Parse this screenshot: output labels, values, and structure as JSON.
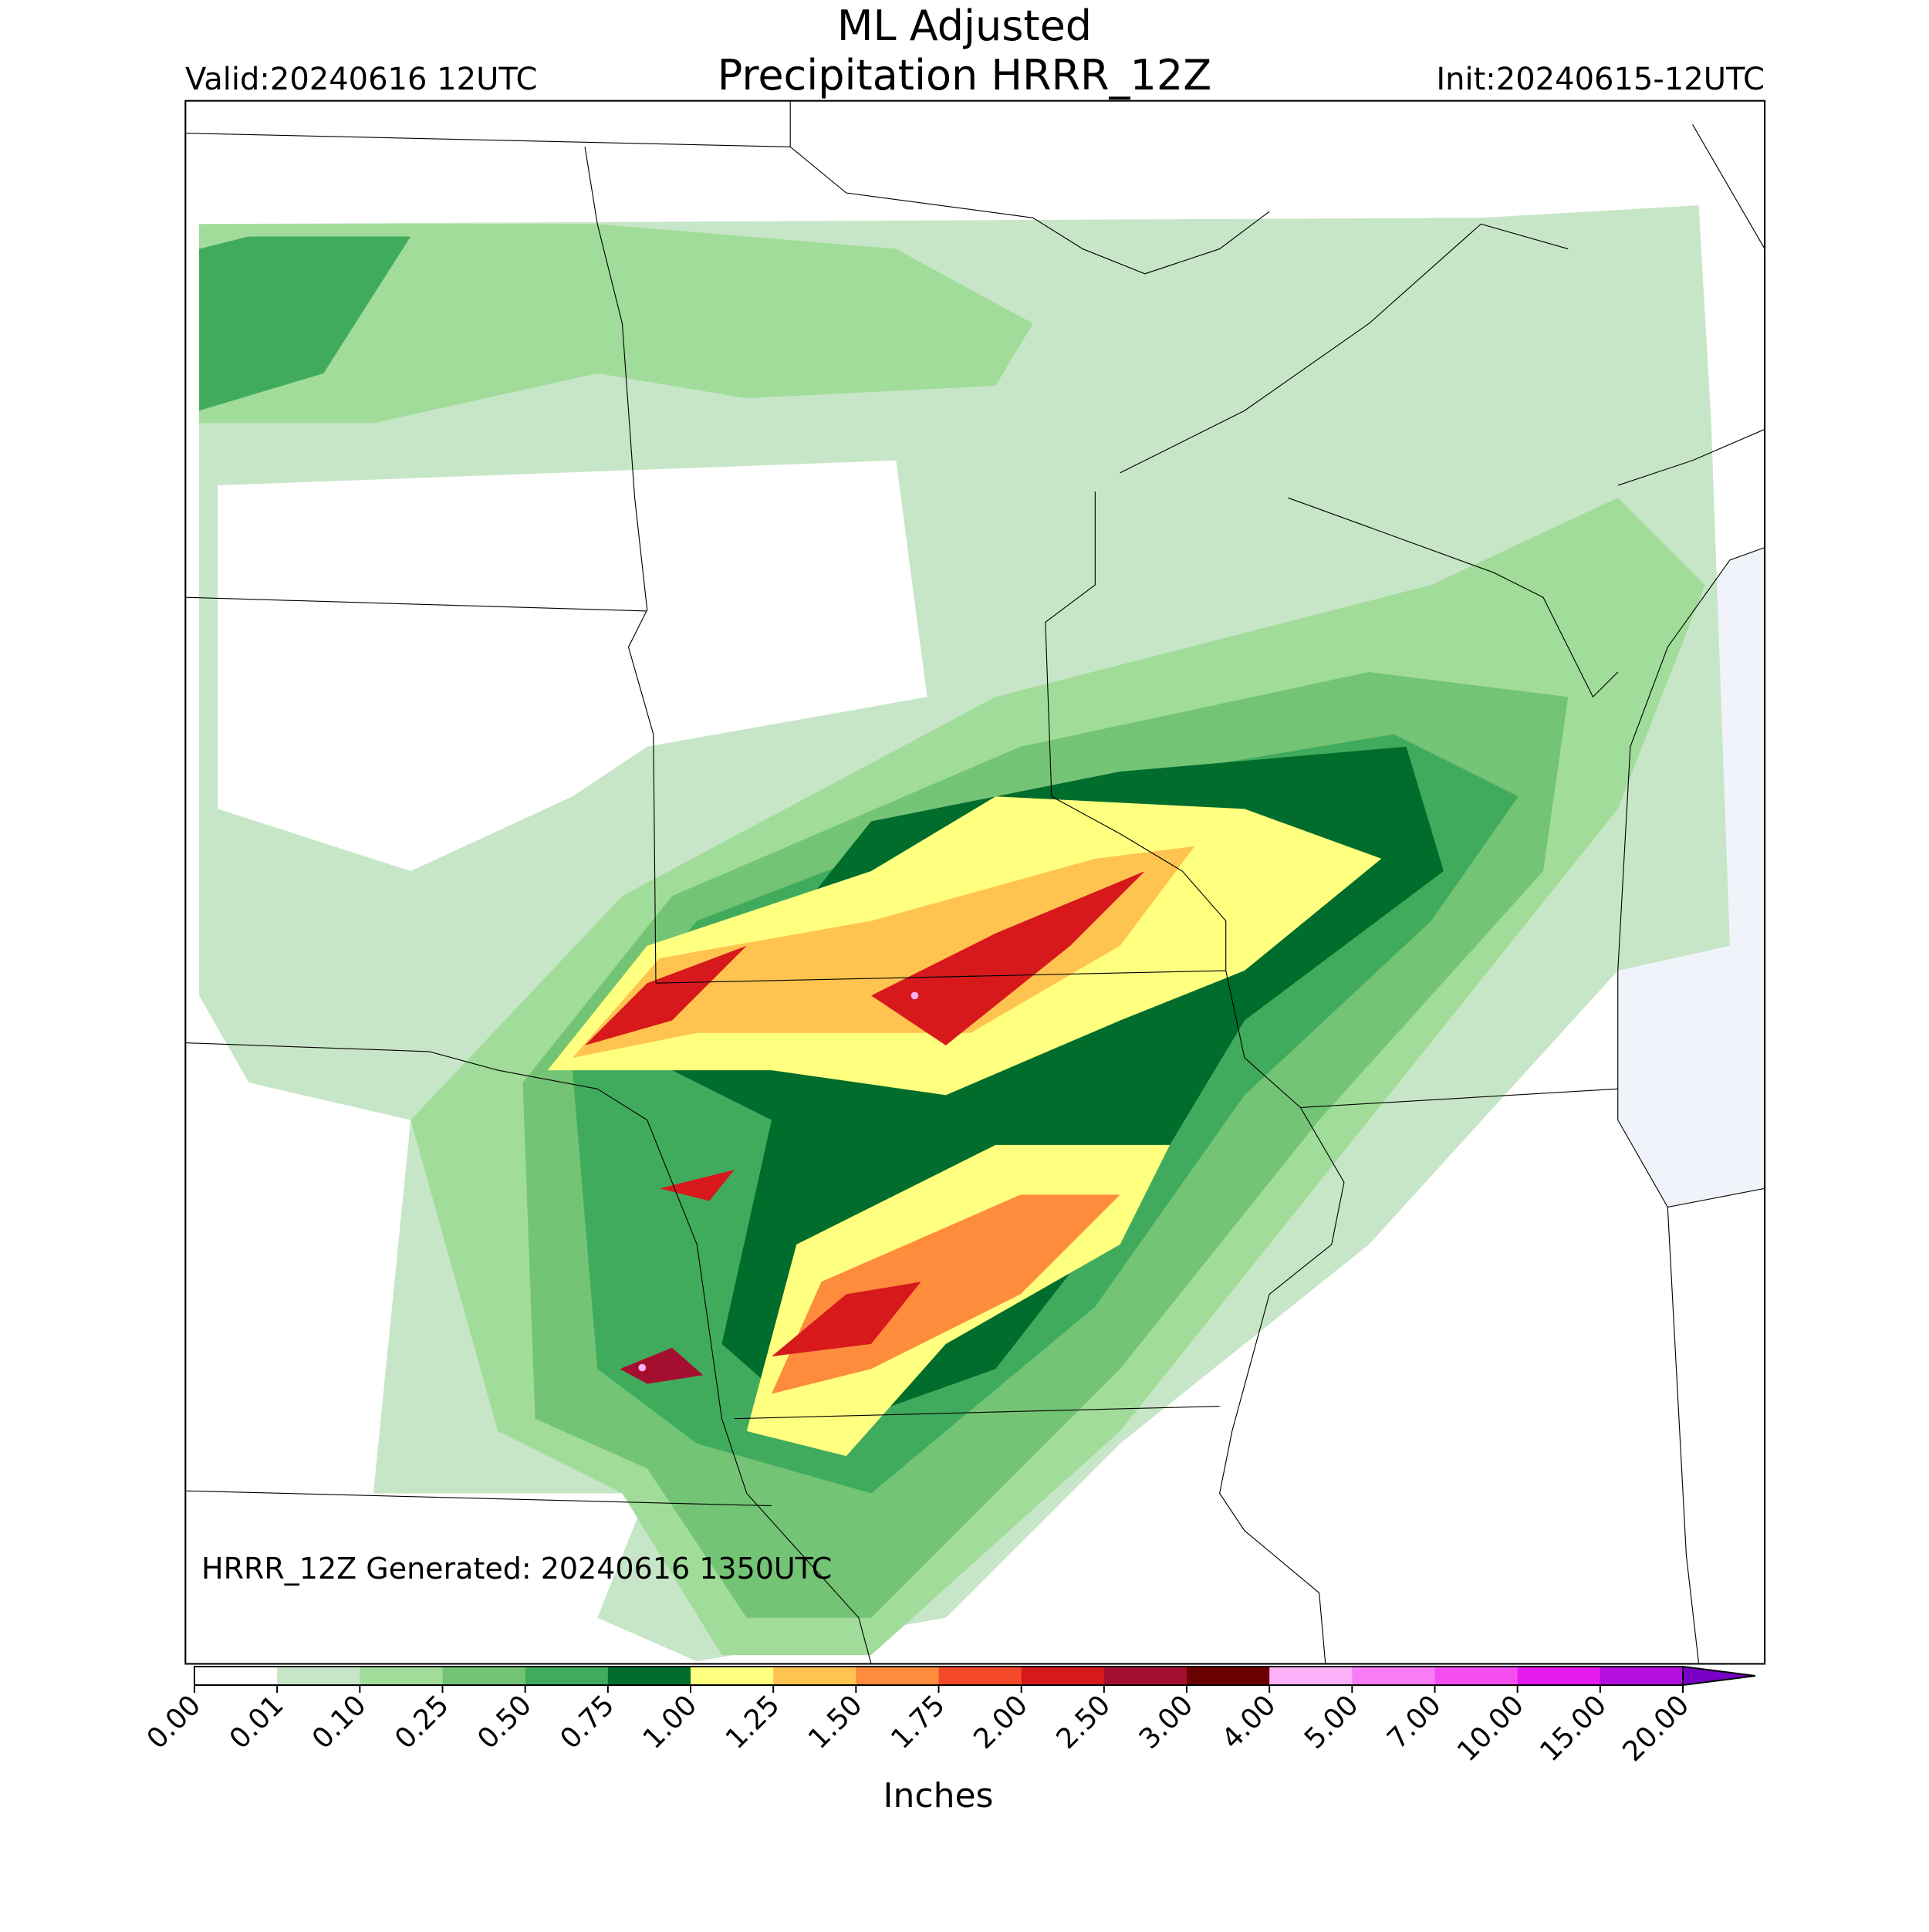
{
  "map": {
    "title_line1": "ML Adjusted",
    "title_line2": "Precipitation HRRR_12Z",
    "valid": "Valid:20240616 12UTC",
    "init": "Init:20240615-12UTC",
    "note": "HRRR_12Z Generated: 20240616 1350UTC",
    "colorbar": {
      "label": "Inches",
      "ticks": [
        {
          "value": 0,
          "label": "0.00"
        },
        {
          "value": 0.01,
          "label": "0.01"
        },
        {
          "value": 0.1,
          "label": "0.10"
        },
        {
          "value": 0.25,
          "label": "0.25"
        },
        {
          "value": 0.5,
          "label": "0.50"
        },
        {
          "value": 0.75,
          "label": "0.75"
        },
        {
          "value": 1,
          "label": "1.00"
        },
        {
          "value": 1.25,
          "label": "1.25"
        },
        {
          "value": 1.5,
          "label": "1.50"
        },
        {
          "value": 1.75,
          "label": "1.75"
        },
        {
          "value": 2,
          "label": "2.00"
        },
        {
          "value": 2.5,
          "label": "2.50"
        },
        {
          "value": 3,
          "label": "3.00"
        },
        {
          "value": 4,
          "label": "4.00"
        },
        {
          "value": 5,
          "label": "5.00"
        },
        {
          "value": 7,
          "label": "7.00"
        },
        {
          "value": 10,
          "label": "10.00"
        },
        {
          "value": 15,
          "label": "15.00"
        },
        {
          "value": 20,
          "label": "20.00"
        }
      ],
      "colors": [
        "#ffffff",
        "#c7e6c7",
        "#a1dc9a",
        "#74c476",
        "#41ab5d",
        "#006d2c",
        "#ffff80",
        "#ffc44f",
        "#ff8b3d",
        "#f54a2a",
        "#d7191c",
        "#a50f2f",
        "#6b0000",
        "#fbb0f8",
        "#f87cf6",
        "#f54ef0",
        "#e619ef",
        "#b40ee0"
      ],
      "extend_color": "#7a00c8"
    }
  }
}
